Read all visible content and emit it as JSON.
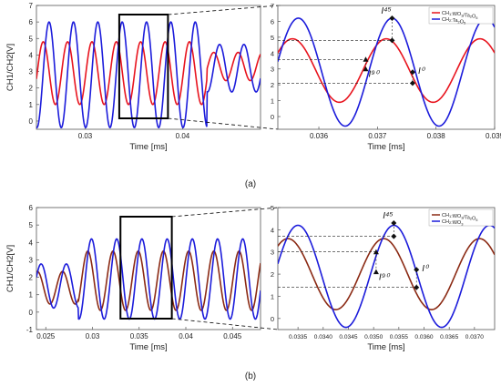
{
  "panels": [
    {
      "id": "a",
      "caption": "(a)",
      "ylabel": "CH1/CH2[V]",
      "xlabel_left": "Time [ms]",
      "xlabel_right": "Time [ms]",
      "legend": [
        "CH1:WO3/Ta2O5",
        "CH2:Ta2O5"
      ],
      "markers": {
        "I45": "I⁴⁵",
        "I90": "I⁹⁰",
        "I0": "I⁰"
      },
      "colors": {
        "ch1": "#e8141e",
        "ch2": "#1c1cdb"
      }
    },
    {
      "id": "b",
      "caption": "(b)",
      "ylabel": "CH1/CH2[V]",
      "xlabel_left": "Time [ms]",
      "xlabel_right": "Time [ms]",
      "legend": [
        "CH1:WO3/Ta2O5",
        "CH2:WO3"
      ],
      "markers": {
        "I45": "I⁴⁵",
        "I90": "I⁹⁰",
        "I0": "I⁰"
      },
      "colors": {
        "ch1": "#8b2a14",
        "ch2": "#1c1cdb"
      }
    }
  ],
  "chart_data": [
    {
      "type": "line",
      "panel": "a-overview",
      "xlabel": "Time [ms]",
      "ylabel": "CH1/CH2[V]",
      "xlim": [
        0.025,
        0.048
      ],
      "ylim": [
        -0.5,
        7
      ],
      "xticks": [
        0.03,
        0.04
      ],
      "yticks": [
        0,
        1,
        2,
        3,
        4,
        5,
        6,
        7
      ],
      "series": [
        {
          "name": "CH1:WO3/Ta2O5",
          "color": "#e8141e",
          "model": "sine",
          "amp": 1.9,
          "offset": 2.9,
          "period": 0.0025,
          "peak_at": 0.0307
        },
        {
          "name": "CH2:Ta2O5",
          "color": "#1c1cdb",
          "model": "sine",
          "amp": 3.2,
          "offset": 2.8,
          "period": 0.0025,
          "peak_at": 0.0313
        }
      ],
      "zoom_window": [
        0.0335,
        0.0385
      ]
    },
    {
      "type": "line",
      "panel": "a-zoom",
      "xlabel": "Time [ms]",
      "xlim": [
        0.0353,
        0.039
      ],
      "ylim": [
        -0.8,
        7
      ],
      "xticks": [
        0.036,
        0.037,
        0.038,
        0.039
      ],
      "yticks": [
        0,
        1,
        2,
        3,
        4,
        5,
        6,
        7
      ],
      "series": [
        {
          "name": "CH1:WO3/Ta2O5",
          "color": "#e8141e",
          "model": "sine",
          "amp": 2.0,
          "offset": 2.9,
          "period": 0.0016,
          "peak_at": 0.03715
        },
        {
          "name": "CH2:Ta2O5",
          "color": "#1c1cdb",
          "model": "sine",
          "amp": 3.4,
          "offset": 2.8,
          "period": 0.0016,
          "peak_at": 0.03725
        }
      ],
      "points": [
        {
          "label": "I45",
          "x": 0.03725,
          "y": 6.2
        },
        {
          "label": "I45-ch1",
          "x": 0.03725,
          "y": 4.8
        },
        {
          "label": "I90",
          "x": 0.0368,
          "y": 3.6
        },
        {
          "label": "I90-b",
          "x": 0.0368,
          "y": 3.0
        },
        {
          "label": "I0",
          "x": 0.0376,
          "y": 2.8
        },
        {
          "label": "I0-b",
          "x": 0.0376,
          "y": 2.1
        }
      ],
      "ref_levels": [
        4.8,
        3.6,
        2.1
      ]
    },
    {
      "type": "line",
      "panel": "b-overview",
      "xlabel": "Time [ms]",
      "ylabel": "CH1/CH2[V]",
      "xlim": [
        0.024,
        0.048
      ],
      "ylim": [
        -1,
        6
      ],
      "xticks": [
        0.025,
        0.03,
        0.035,
        0.04,
        0.045
      ],
      "yticks": [
        -1,
        0,
        1,
        2,
        3,
        4,
        5,
        6
      ],
      "series": [
        {
          "name": "CH1:WO3/Ta2O5",
          "color": "#8b2a14",
          "model": "sine",
          "amp": 1.7,
          "offset": 1.8,
          "period": 0.0027,
          "peak_at": 0.0349
        },
        {
          "name": "CH2:WO3",
          "color": "#1c1cdb",
          "model": "sine",
          "amp": 2.3,
          "offset": 1.9,
          "period": 0.0027,
          "peak_at": 0.0353
        }
      ],
      "zoom_window": [
        0.033,
        0.0385
      ]
    },
    {
      "type": "line",
      "panel": "b-zoom",
      "xlabel": "Time [ms]",
      "xlim": [
        0.0331,
        0.0374
      ],
      "ylim": [
        -0.5,
        5
      ],
      "xticks": [
        0.0335,
        0.034,
        0.0345,
        0.035,
        0.0355,
        0.036,
        0.0365,
        0.037
      ],
      "xticklabels": [
        "0.0335",
        "0.0340",
        "0.0345",
        "0.0350",
        "0.0355",
        "0.0360",
        "0.0365",
        "0.0370"
      ],
      "yticks": [
        0,
        1,
        2,
        3,
        4,
        5
      ],
      "series": [
        {
          "name": "CH1:WO3/Ta2O5",
          "color": "#8b2a14",
          "model": "sine",
          "amp": 1.6,
          "offset": 2.0,
          "period": 0.0019,
          "peak_at": 0.0352
        },
        {
          "name": "CH2:WO3",
          "color": "#1c1cdb",
          "model": "sine",
          "amp": 2.3,
          "offset": 1.9,
          "period": 0.0019,
          "peak_at": 0.0354
        }
      ],
      "points": [
        {
          "label": "I45",
          "x": 0.0354,
          "y": 4.3
        },
        {
          "label": "I45-ch1",
          "x": 0.0354,
          "y": 3.7
        },
        {
          "label": "I90",
          "x": 0.03505,
          "y": 3.0
        },
        {
          "label": "I90-b",
          "x": 0.03505,
          "y": 2.1
        },
        {
          "label": "I0",
          "x": 0.03585,
          "y": 2.2
        },
        {
          "label": "I0-b",
          "x": 0.03585,
          "y": 1.4
        }
      ],
      "ref_levels": [
        3.7,
        3.0,
        1.4
      ]
    }
  ]
}
